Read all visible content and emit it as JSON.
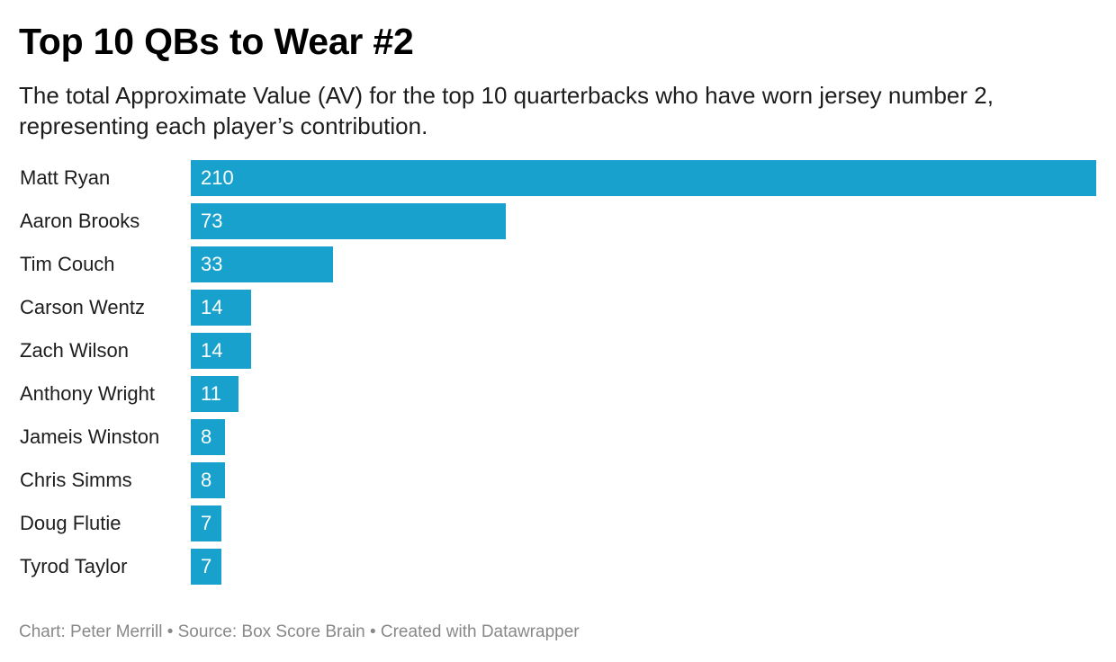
{
  "chart_data": {
    "type": "bar",
    "orientation": "horizontal",
    "title": "Top 10 QBs to Wear #2",
    "subtitle": "The total Approximate Value (AV) for the top 10 quarterbacks who have worn jersey number 2, representing each player’s contribution.",
    "categories": [
      "Matt Ryan",
      "Aaron Brooks",
      "Tim Couch",
      "Carson Wentz",
      "Zach Wilson",
      "Anthony Wright",
      "Jameis Winston",
      "Chris Simms",
      "Doug Flutie",
      "Tyrod Taylor"
    ],
    "values": [
      210,
      73,
      33,
      14,
      14,
      11,
      8,
      8,
      7,
      7
    ],
    "xlim": [
      0,
      210
    ],
    "grid": false,
    "legend": "none",
    "data_labels": "inside-bar-left",
    "bar_color": "#18a1cd",
    "label_color": "#ffffff"
  },
  "footer": {
    "text": "Chart: Peter Merrill • Source: Box Score Brain • Created with Datawrapper"
  }
}
